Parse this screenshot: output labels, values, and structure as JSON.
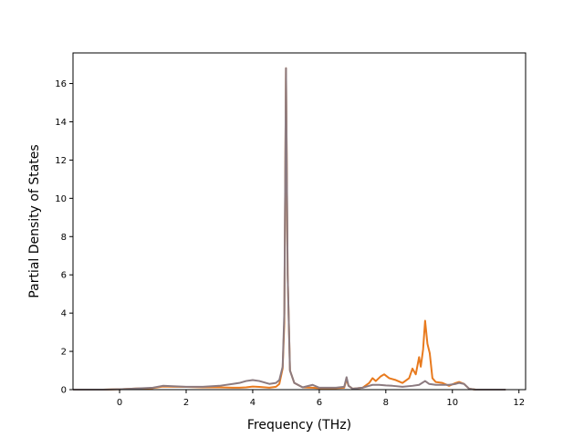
{
  "chart_data": {
    "type": "line",
    "title": "",
    "xlabel": "Frequency (THz)",
    "ylabel": "Partial Density of States",
    "xlim": [
      -1.4,
      12.2
    ],
    "ylim": [
      0,
      17.6
    ],
    "xticks": [
      0,
      2,
      4,
      6,
      8,
      10,
      12
    ],
    "yticks": [
      0,
      2,
      4,
      6,
      8,
      10,
      12,
      14,
      16
    ],
    "grid": false,
    "series": [
      {
        "color": "#e87a1e",
        "points": [
          [
            -1.4,
            0
          ],
          [
            -0.5,
            0
          ],
          [
            0,
            0.02
          ],
          [
            0.5,
            0.06
          ],
          [
            1.0,
            0.08
          ],
          [
            1.3,
            0.16
          ],
          [
            1.6,
            0.15
          ],
          [
            2.0,
            0.14
          ],
          [
            2.5,
            0.12
          ],
          [
            3.0,
            0.12
          ],
          [
            3.4,
            0.1
          ],
          [
            3.6,
            0.1
          ],
          [
            3.8,
            0.12
          ],
          [
            4.0,
            0.16
          ],
          [
            4.2,
            0.14
          ],
          [
            4.5,
            0.1
          ],
          [
            4.7,
            0.15
          ],
          [
            4.8,
            0.3
          ],
          [
            4.9,
            1.1
          ],
          [
            4.95,
            3.5
          ],
          [
            5.0,
            16.8
          ],
          [
            5.05,
            6.0
          ],
          [
            5.12,
            1.0
          ],
          [
            5.25,
            0.35
          ],
          [
            5.5,
            0.12
          ],
          [
            5.8,
            0.1
          ],
          [
            6.0,
            0.08
          ],
          [
            6.5,
            0.08
          ],
          [
            6.75,
            0.1
          ],
          [
            6.82,
            0.55
          ],
          [
            6.88,
            0.2
          ],
          [
            7.0,
            0.05
          ],
          [
            7.3,
            0.1
          ],
          [
            7.5,
            0.35
          ],
          [
            7.6,
            0.6
          ],
          [
            7.7,
            0.45
          ],
          [
            7.85,
            0.7
          ],
          [
            7.95,
            0.8
          ],
          [
            8.1,
            0.6
          ],
          [
            8.3,
            0.5
          ],
          [
            8.5,
            0.35
          ],
          [
            8.7,
            0.6
          ],
          [
            8.8,
            1.1
          ],
          [
            8.9,
            0.8
          ],
          [
            9.0,
            1.7
          ],
          [
            9.05,
            1.2
          ],
          [
            9.12,
            2.1
          ],
          [
            9.18,
            3.6
          ],
          [
            9.25,
            2.4
          ],
          [
            9.32,
            1.9
          ],
          [
            9.4,
            0.6
          ],
          [
            9.5,
            0.4
          ],
          [
            9.7,
            0.35
          ],
          [
            9.9,
            0.2
          ],
          [
            10.1,
            0.35
          ],
          [
            10.2,
            0.4
          ],
          [
            10.35,
            0.3
          ],
          [
            10.5,
            0.05
          ],
          [
            10.7,
            0
          ],
          [
            11.6,
            0
          ]
        ]
      },
      {
        "color": "#8c7b80",
        "points": [
          [
            -1.4,
            0
          ],
          [
            -0.5,
            0
          ],
          [
            0,
            0.02
          ],
          [
            0.5,
            0.06
          ],
          [
            1.0,
            0.1
          ],
          [
            1.3,
            0.2
          ],
          [
            1.6,
            0.18
          ],
          [
            2.0,
            0.15
          ],
          [
            2.5,
            0.15
          ],
          [
            3.0,
            0.2
          ],
          [
            3.4,
            0.3
          ],
          [
            3.6,
            0.35
          ],
          [
            3.8,
            0.45
          ],
          [
            4.0,
            0.5
          ],
          [
            4.2,
            0.45
          ],
          [
            4.5,
            0.3
          ],
          [
            4.7,
            0.35
          ],
          [
            4.8,
            0.5
          ],
          [
            4.9,
            1.2
          ],
          [
            4.95,
            4.0
          ],
          [
            5.0,
            16.8
          ],
          [
            5.05,
            6.0
          ],
          [
            5.12,
            1.0
          ],
          [
            5.25,
            0.35
          ],
          [
            5.5,
            0.12
          ],
          [
            5.8,
            0.25
          ],
          [
            6.0,
            0.1
          ],
          [
            6.5,
            0.1
          ],
          [
            6.75,
            0.15
          ],
          [
            6.82,
            0.65
          ],
          [
            6.88,
            0.2
          ],
          [
            7.0,
            0.05
          ],
          [
            7.3,
            0.1
          ],
          [
            7.5,
            0.2
          ],
          [
            7.6,
            0.25
          ],
          [
            7.8,
            0.25
          ],
          [
            8.0,
            0.22
          ],
          [
            8.2,
            0.2
          ],
          [
            8.5,
            0.15
          ],
          [
            8.8,
            0.2
          ],
          [
            9.0,
            0.25
          ],
          [
            9.18,
            0.45
          ],
          [
            9.3,
            0.3
          ],
          [
            9.5,
            0.25
          ],
          [
            9.7,
            0.25
          ],
          [
            9.9,
            0.25
          ],
          [
            10.1,
            0.3
          ],
          [
            10.2,
            0.35
          ],
          [
            10.35,
            0.3
          ],
          [
            10.5,
            0.05
          ],
          [
            10.7,
            0
          ],
          [
            11.6,
            0
          ]
        ]
      }
    ]
  }
}
